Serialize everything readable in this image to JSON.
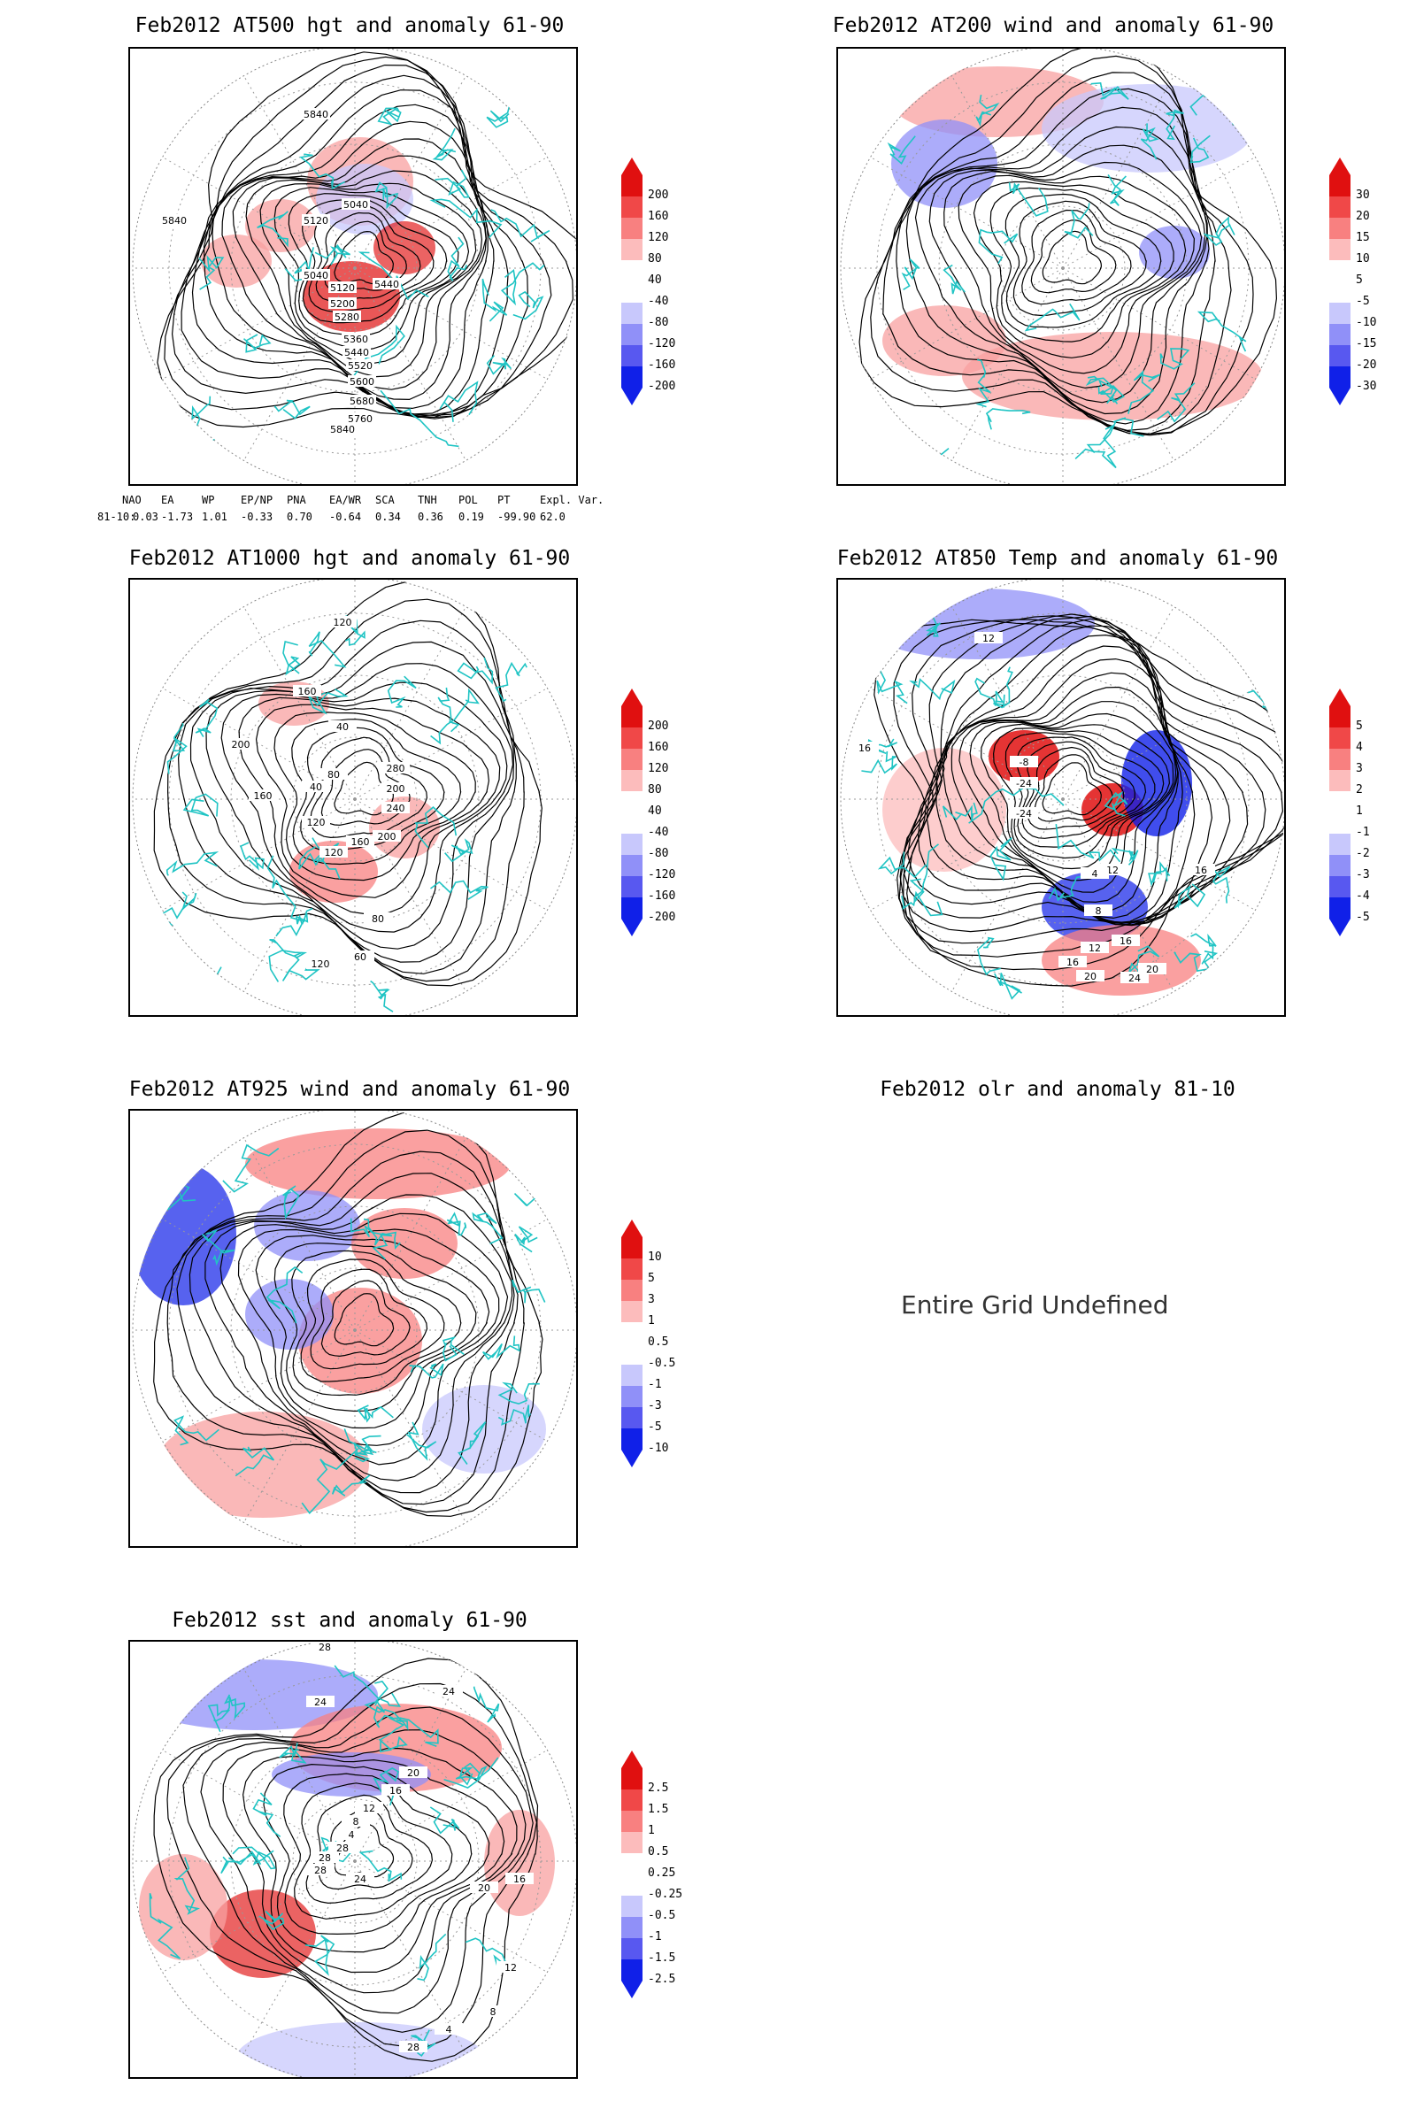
{
  "colors": {
    "coast": "#20c4c4",
    "contour": "#000000",
    "red": "#e01010",
    "blue": "#1020e8"
  },
  "panels": [
    {
      "title": "Feb2012 AT500 hgt and anomaly 61-90",
      "contour_labels": [
        "5840",
        "5840",
        "5120",
        "5040",
        "5040",
        "5120",
        "5200",
        "5280",
        "5440",
        "5360",
        "5440",
        "5520",
        "5600",
        "5680",
        "5760",
        "5840"
      ],
      "colorbar": [
        "200",
        "160",
        "120",
        "80",
        "40",
        "-40",
        "-80",
        "-120",
        "-160",
        "-200"
      ]
    },
    {
      "title": "Feb2012 AT200 wind and anomaly 61-90",
      "colorbar": [
        "30",
        "20",
        "15",
        "10",
        "5",
        "-5",
        "-10",
        "-15",
        "-20",
        "-30"
      ]
    },
    {
      "title": "Feb2012 AT1000 hgt and anomaly 61-90",
      "contour_labels": [
        "120",
        "160",
        "200",
        "40",
        "40",
        "80",
        "120",
        "160",
        "200",
        "280",
        "240",
        "200",
        "160",
        "120",
        "80",
        "60",
        "120"
      ],
      "colorbar": [
        "200",
        "160",
        "120",
        "80",
        "40",
        "-40",
        "-80",
        "-120",
        "-160",
        "-200"
      ]
    },
    {
      "title": "Feb2012 AT850 Temp and anomaly 61-90",
      "contour_labels": [
        "12",
        "16",
        "16",
        "-8",
        "-24",
        "-24",
        "-12",
        "4",
        "8",
        "12",
        "16",
        "20",
        "24",
        "20",
        "16"
      ],
      "colorbar": [
        "5",
        "4",
        "3",
        "2",
        "1",
        "-1",
        "-2",
        "-3",
        "-4",
        "-5"
      ]
    },
    {
      "title": "Feb2012 AT925 wind and anomaly 61-90",
      "colorbar": [
        "10",
        "5",
        "3",
        "1",
        "0.5",
        "-0.5",
        "-1",
        "-3",
        "-5",
        "-10"
      ]
    },
    {
      "title": "Feb2012 olr and anomaly 81-10",
      "message": "Entire Grid Undefined"
    },
    {
      "title": "Feb2012 sst and anomaly 61-90",
      "contour_labels": [
        "28",
        "24",
        "24",
        "20",
        "16",
        "12",
        "8",
        "4",
        "28",
        "28",
        "28",
        "24",
        "20",
        "16",
        "12",
        "8",
        "4",
        "28"
      ],
      "colorbar": [
        "2.5",
        "1.5",
        "1",
        "0.5",
        "0.25",
        "-0.25",
        "-0.5",
        "-1",
        "-1.5",
        "-2.5"
      ]
    }
  ],
  "indices": {
    "header": [
      "NAO",
      "EA",
      "WP",
      "EP/NP",
      "PNA",
      "EA/WR",
      "SCA",
      "TNH",
      "POL",
      "PT",
      "Expl. Var."
    ],
    "row_label": "81-10:",
    "values": [
      "0.03",
      "-1.73",
      "1.01",
      "-0.33",
      "0.70",
      "-0.64",
      "0.34",
      "0.36",
      "0.19",
      "-99.90",
      "62.0"
    ]
  }
}
